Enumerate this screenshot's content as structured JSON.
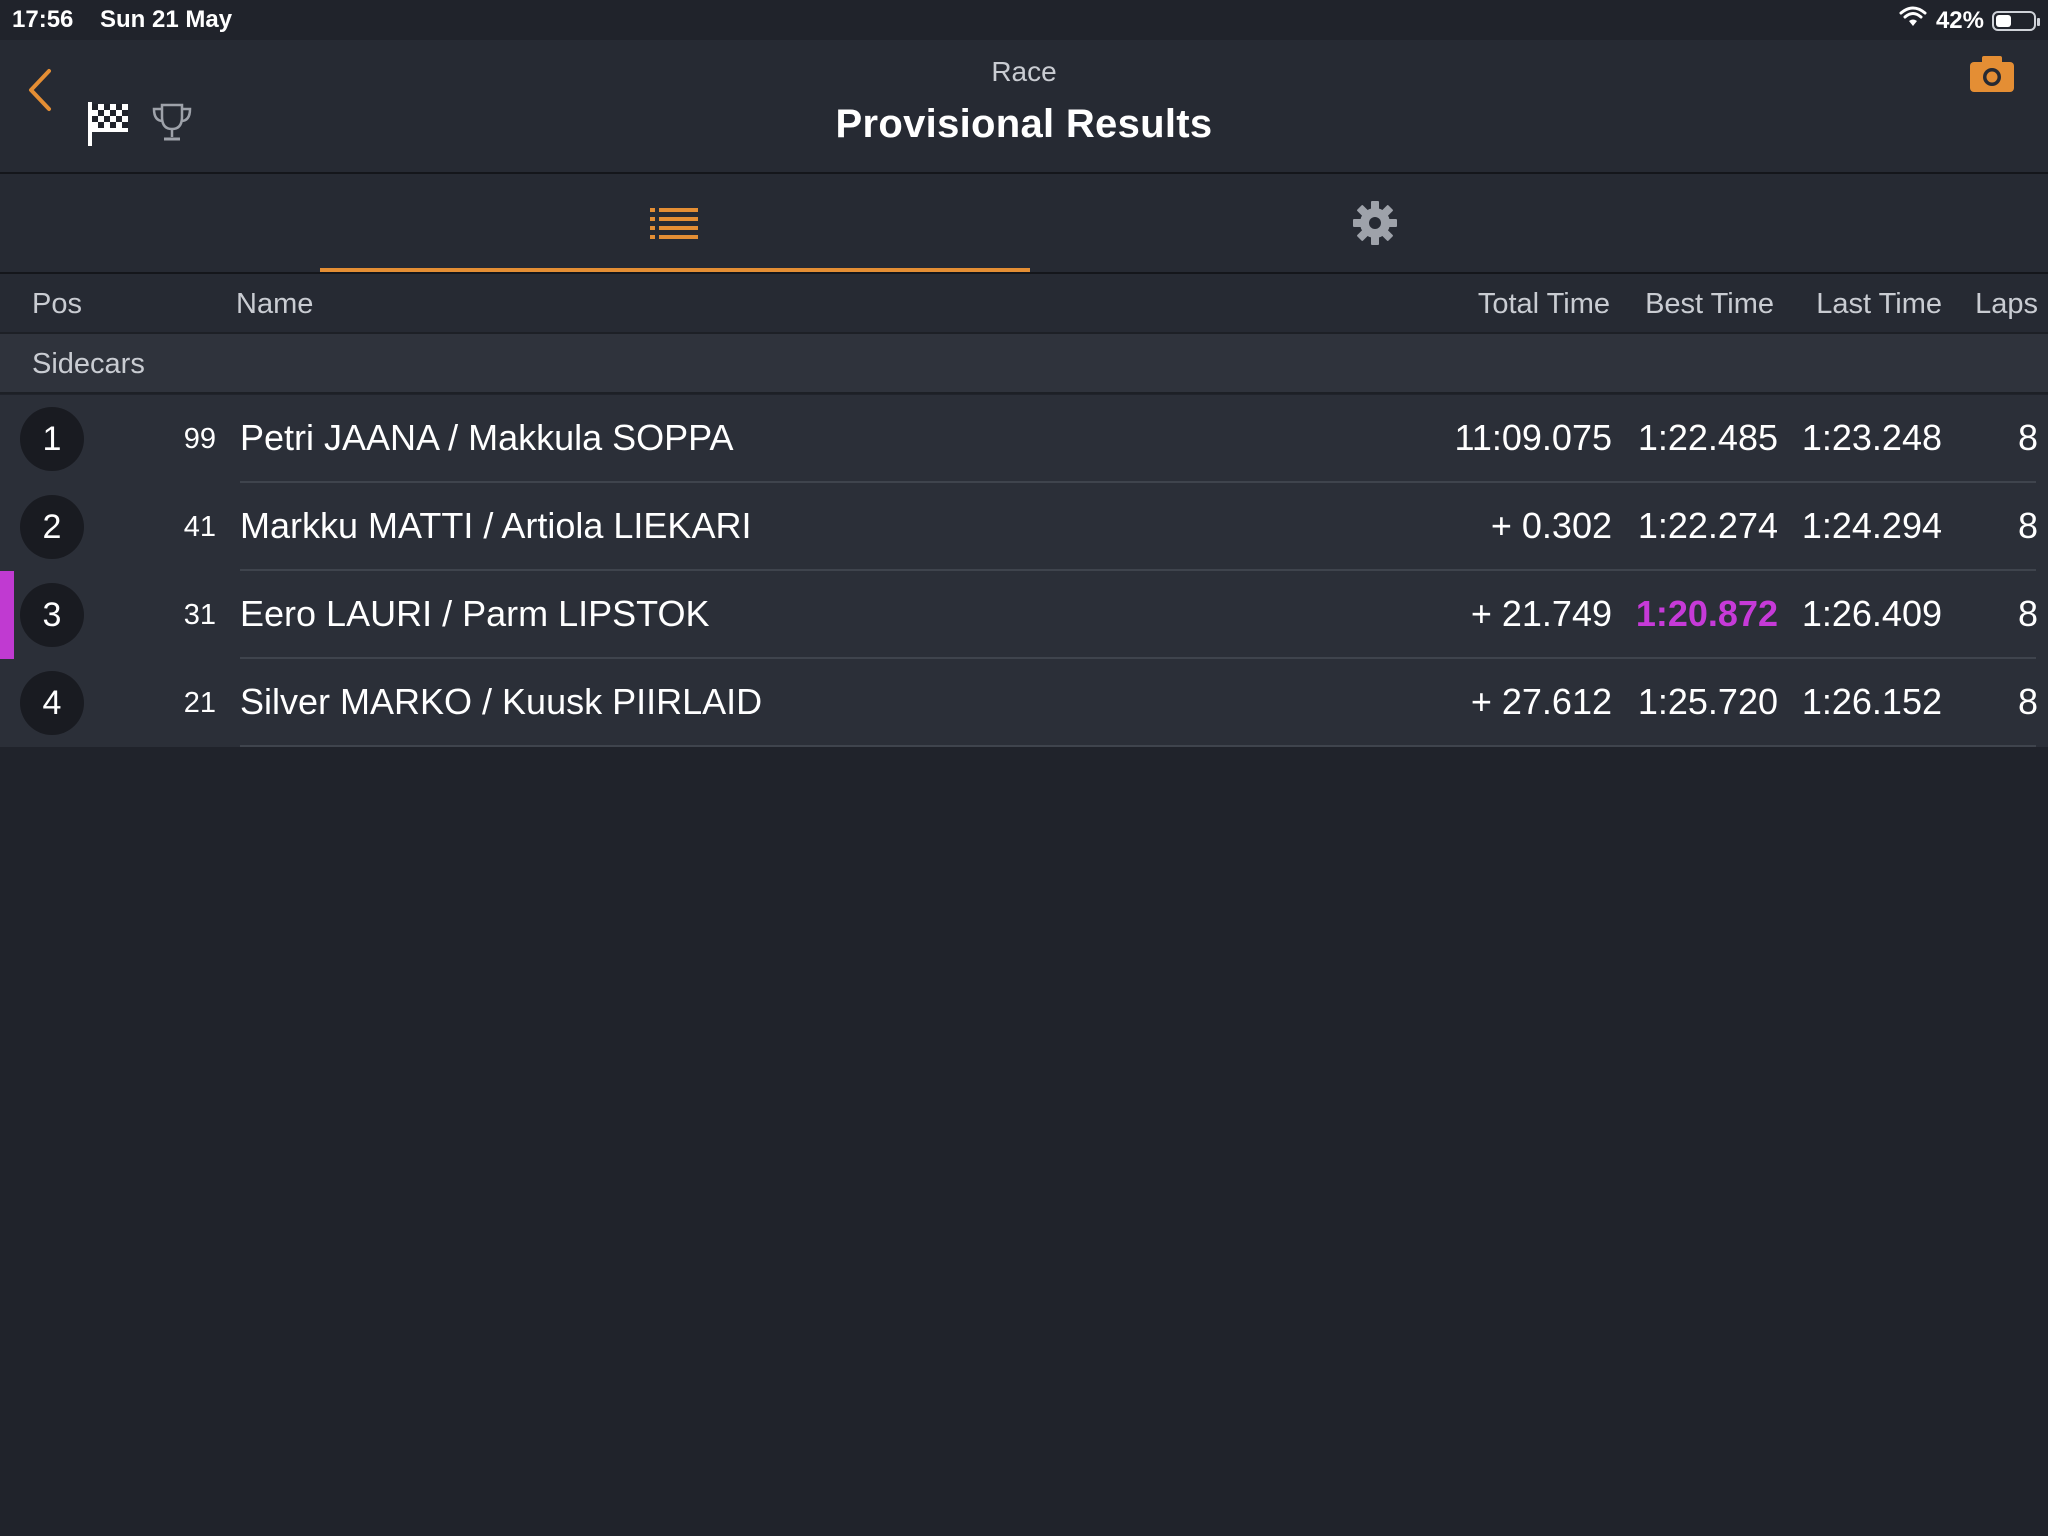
{
  "status_bar": {
    "time": "17:56",
    "date": "Sun 21 May",
    "battery": "42%",
    "battery_fraction": 0.42
  },
  "header": {
    "subtitle": "Race",
    "title": "Provisional Results",
    "icons": [
      "back-chevron-icon",
      "checkered-flag-icon",
      "trophy-icon",
      "camera-icon"
    ]
  },
  "tabs": [
    {
      "name": "list",
      "icon": "list-icon",
      "active": true
    },
    {
      "name": "settings",
      "icon": "gear-icon",
      "active": false
    }
  ],
  "table": {
    "headers": {
      "pos": "Pos",
      "name": "Name",
      "total": "Total Time",
      "best": "Best Time",
      "last": "Last Time",
      "laps": "Laps"
    },
    "group": "Sidecars",
    "rows": [
      {
        "pos": "1",
        "number": "99",
        "name": "Petri JAANA / Makkula SOPPA",
        "total": "11:09.075",
        "best": "1:22.485",
        "last": "1:23.248",
        "laps": "8"
      },
      {
        "pos": "2",
        "number": "41",
        "name": "Markku MATTI / Artiola LIEKARI",
        "total": "+ 0.302",
        "best": "1:22.274",
        "last": "1:24.294",
        "laps": "8"
      },
      {
        "pos": "3",
        "number": "31",
        "name": "Eero LAURI / Parm LIPSTOK",
        "total": "+ 21.749",
        "best": "1:20.872",
        "last": "1:26.409",
        "laps": "8",
        "best_overall": true
      },
      {
        "pos": "4",
        "number": "21",
        "name": "Silver MARKO / Kuusk PIIRLAID",
        "total": "+ 27.612",
        "best": "1:25.720",
        "last": "1:26.152",
        "laps": "8"
      }
    ]
  },
  "colors": {
    "accent": "#e48e34",
    "best_lap": "#c63ad8",
    "background": "#20232b"
  }
}
